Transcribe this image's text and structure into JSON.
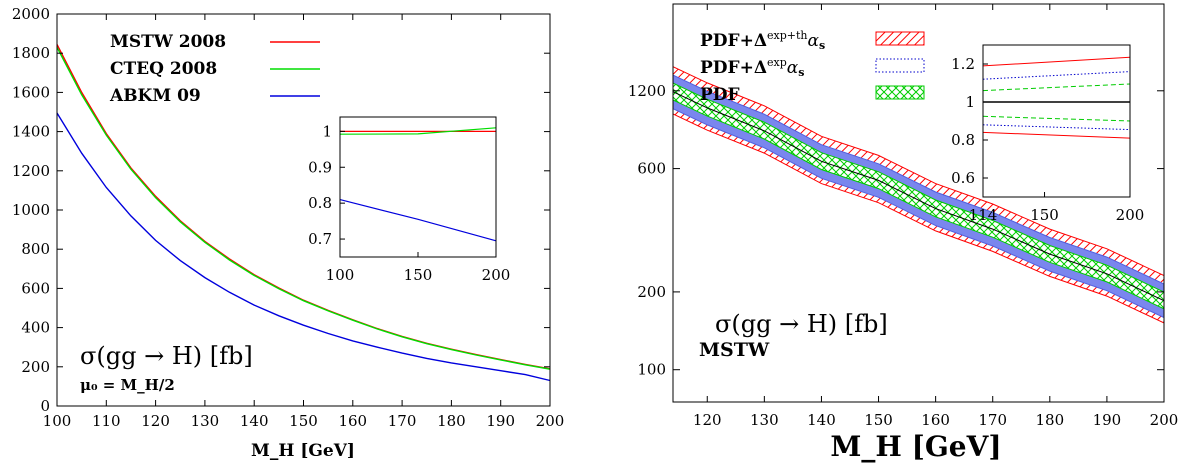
{
  "chart_data": [
    {
      "type": "line",
      "xlabel": "M_H [GeV]",
      "ylabel": "",
      "xlim": [
        100,
        200
      ],
      "ylim": [
        0,
        2000
      ],
      "xticks": [
        100,
        110,
        120,
        130,
        140,
        150,
        160,
        170,
        180,
        190,
        200
      ],
      "yticks": [
        0,
        200,
        400,
        600,
        800,
        1000,
        1200,
        1400,
        1600,
        1800,
        2000
      ],
      "x": [
        100,
        105,
        110,
        115,
        120,
        125,
        130,
        135,
        140,
        145,
        150,
        155,
        160,
        165,
        170,
        175,
        180,
        185,
        190,
        195,
        200
      ],
      "series": [
        {
          "name": "MSTW 2008",
          "color": "#ff0000",
          "values": [
            1845,
            1600,
            1390,
            1215,
            1070,
            945,
            840,
            750,
            670,
            602,
            540,
            488,
            440,
            395,
            355,
            320,
            290,
            262,
            237,
            212,
            190
          ]
        },
        {
          "name": "CTEQ 2008",
          "color": "#00dd00",
          "values": [
            1830,
            1588,
            1382,
            1208,
            1063,
            940,
            835,
            745,
            666,
            598,
            537,
            485,
            438,
            393,
            353,
            318,
            288,
            260,
            235,
            210,
            188
          ]
        },
        {
          "name": "ABKM 09",
          "color": "#0000dd",
          "values": [
            1495,
            1290,
            1115,
            970,
            845,
            742,
            655,
            580,
            515,
            460,
            412,
            370,
            332,
            300,
            270,
            243,
            220,
            200,
            180,
            160,
            130
          ]
        }
      ],
      "annotation_main": "σ(gg → H) [fb]",
      "annotation_sub": "μ₀ = M_H/2",
      "inset": {
        "xlim": [
          100,
          200
        ],
        "ylim": [
          0.65,
          1.04
        ],
        "xticks": [
          100,
          150,
          200
        ],
        "yticks": [
          0.7,
          0.8,
          0.9,
          1
        ],
        "x": [
          100,
          150,
          200
        ],
        "series": [
          {
            "name": "MSTW 2008",
            "color": "#ff0000",
            "values": [
              1.0,
              1.0,
              1.0
            ]
          },
          {
            "name": "CTEQ 2008",
            "color": "#00dd00",
            "values": [
              0.992,
              0.993,
              1.01
            ]
          },
          {
            "name": "ABKM 09",
            "color": "#0000dd",
            "values": [
              0.81,
              0.755,
              0.695
            ]
          }
        ]
      }
    },
    {
      "type": "area",
      "xlabel": "M_H [GeV]",
      "ylabel": "",
      "log_y": true,
      "xlim": [
        114,
        200
      ],
      "ylim": [
        75,
        2600
      ],
      "xticks": [
        120,
        130,
        140,
        150,
        160,
        170,
        180,
        190,
        200
      ],
      "yticks": [
        100,
        200,
        600,
        1200
      ],
      "x": [
        114,
        120,
        130,
        140,
        150,
        160,
        170,
        180,
        190,
        200
      ],
      "central": [
        1190,
        1030,
        840,
        640,
        540,
        420,
        350,
        280,
        235,
        185
      ],
      "bands": [
        {
          "name": "PDF+Δexp+thαs",
          "color": "#ff0000",
          "rel_up": 1.25,
          "rel_down": 0.82
        },
        {
          "name": "PDF+Δexpαs",
          "color": "#0000cc",
          "rel_up": 1.16,
          "rel_down": 0.86
        },
        {
          "name": "PDF",
          "color": "#00cc00",
          "rel_up": 1.08,
          "rel_down": 0.93
        }
      ],
      "annotation_main": "σ(gg → H) [fb]",
      "annotation_sub": "MSTW",
      "inset": {
        "xlim": [
          114,
          200
        ],
        "ylim": [
          0.5,
          1.3
        ],
        "xticks": [
          114,
          150,
          200
        ],
        "yticks": [
          0.6,
          0.8,
          1,
          1.2
        ],
        "x": [
          114,
          200
        ],
        "lines": [
          {
            "band": "PDF+Δexp+thαs",
            "color": "#ff0000",
            "style": "solid",
            "values": [
              1.19,
              1.235
            ]
          },
          {
            "band": "PDF+Δexp+thαs",
            "color": "#ff0000",
            "style": "solid",
            "values": [
              0.84,
              0.81
            ]
          },
          {
            "band": "PDF+Δexpαs",
            "color": "#0000cc",
            "style": "dotted",
            "values": [
              1.12,
              1.16
            ]
          },
          {
            "band": "PDF+Δexpαs",
            "color": "#0000cc",
            "style": "dotted",
            "values": [
              0.88,
              0.855
            ]
          },
          {
            "band": "PDF",
            "color": "#00cc00",
            "style": "dashed",
            "values": [
              1.06,
              1.095
            ]
          },
          {
            "band": "PDF",
            "color": "#00cc00",
            "style": "dashed",
            "values": [
              0.925,
              0.9
            ]
          },
          {
            "band": "central",
            "color": "#000000",
            "style": "solid",
            "values": [
              1.0,
              1.0
            ]
          }
        ]
      }
    }
  ]
}
